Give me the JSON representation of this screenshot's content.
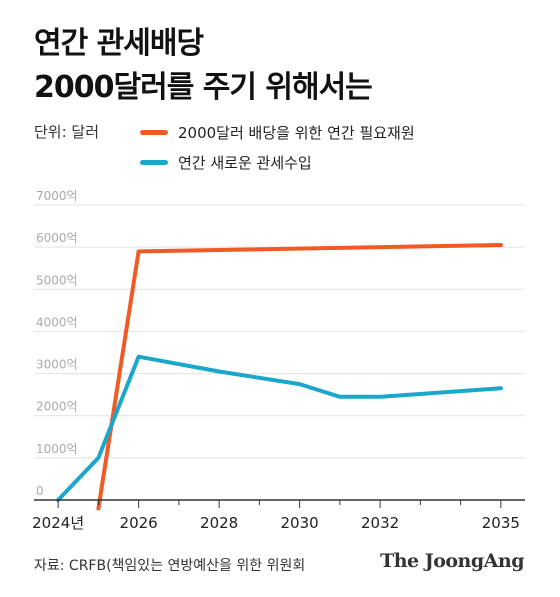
{
  "title_lines": [
    "연간 관세배당",
    "2000달러를 주기 위해서는"
  ],
  "unit_label": "단위: 달러",
  "source": "자료: CRFB(책임있는 연방예산을 위한 위원회",
  "brand": "The JoongAng",
  "colors": {
    "dividend": "#f15a24",
    "tariff": "#1aa7c9",
    "grid": "#e2e2e2",
    "axis": "#333333"
  },
  "chart_data": {
    "type": "line",
    "xlim": [
      2023.4,
      2035.6
    ],
    "ylim": [
      0,
      7000
    ],
    "y_ticks": [
      0,
      1000,
      2000,
      3000,
      4000,
      5000,
      6000,
      7000
    ],
    "y_tick_labels": [
      "0",
      "1000억",
      "2000억",
      "3000억",
      "4000억",
      "5000억",
      "6000억",
      "7000억"
    ],
    "x_ticks": [
      2024,
      2026,
      2028,
      2030,
      2032,
      2035
    ],
    "x_tick_labels": [
      "2024년",
      "2026",
      "2028",
      "2030",
      "2032",
      "2035"
    ],
    "x_minor_ticks": [
      2025,
      2027,
      2029,
      2031,
      2033,
      2034
    ],
    "grid": true,
    "series": [
      {
        "name": "2000달러 배당을 위한 연간 필요재원",
        "color": "#f15a24",
        "x": [
          2025,
          2026,
          2035
        ],
        "y": [
          -200,
          5900,
          6050
        ]
      },
      {
        "name": "연간 새로운 관세수입",
        "color": "#1aa7c9",
        "x": [
          2024,
          2025,
          2026,
          2028,
          2030,
          2031,
          2032,
          2035
        ],
        "y": [
          0,
          1000,
          3400,
          3050,
          2750,
          2450,
          2450,
          2650
        ]
      }
    ]
  }
}
